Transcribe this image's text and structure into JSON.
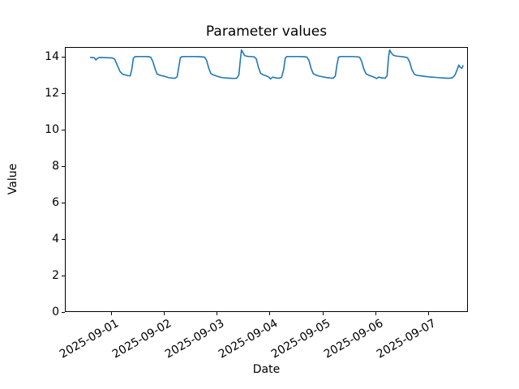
{
  "figure": {
    "background": "#ffffff",
    "text_color": "#000000"
  },
  "chart_data": {
    "type": "line",
    "title": "Parameter values",
    "xlabel": "Date",
    "ylabel": "Value",
    "legend": "none",
    "grid": false,
    "line_color": "#1f77b4",
    "ylim": [
      0,
      14.55
    ],
    "xlim_days_from_first_tick": [
      -0.873,
      6.738
    ],
    "y_ticks": [
      0,
      2,
      4,
      6,
      8,
      10,
      12,
      14
    ],
    "x_tick_labels": [
      "2025-09-01",
      "2025-09-02",
      "2025-09-03",
      "2025-09-04",
      "2025-09-05",
      "2025-09-06",
      "2025-09-07"
    ],
    "x_tick_rotation_deg": 30,
    "series": [
      {
        "name": "parameter",
        "x_unit": "days since 2025-09-01 00:00",
        "points": [
          [
            -0.4,
            14.02
          ],
          [
            -0.36,
            14.01
          ],
          [
            -0.33,
            14.0
          ],
          [
            -0.3,
            13.88
          ],
          [
            -0.27,
            13.97
          ],
          [
            -0.23,
            14.02
          ],
          [
            -0.15,
            14.01
          ],
          [
            -0.05,
            14.0
          ],
          [
            0.02,
            13.99
          ],
          [
            0.06,
            13.9
          ],
          [
            0.11,
            13.55
          ],
          [
            0.16,
            13.22
          ],
          [
            0.21,
            13.09
          ],
          [
            0.26,
            13.05
          ],
          [
            0.31,
            13.01
          ],
          [
            0.35,
            13.0
          ],
          [
            0.38,
            13.35
          ],
          [
            0.41,
            13.97
          ],
          [
            0.44,
            14.06
          ],
          [
            0.52,
            14.07
          ],
          [
            0.62,
            14.07
          ],
          [
            0.7,
            14.06
          ],
          [
            0.74,
            14.03
          ],
          [
            0.78,
            13.8
          ],
          [
            0.82,
            13.4
          ],
          [
            0.86,
            13.1
          ],
          [
            0.9,
            13.05
          ],
          [
            0.96,
            13.0
          ],
          [
            1.02,
            12.96
          ],
          [
            1.08,
            12.9
          ],
          [
            1.14,
            12.88
          ],
          [
            1.2,
            12.87
          ],
          [
            1.24,
            12.95
          ],
          [
            1.27,
            13.45
          ],
          [
            1.3,
            14.0
          ],
          [
            1.33,
            14.06
          ],
          [
            1.42,
            14.07
          ],
          [
            1.54,
            14.07
          ],
          [
            1.66,
            14.06
          ],
          [
            1.76,
            14.04
          ],
          [
            1.8,
            13.85
          ],
          [
            1.84,
            13.42
          ],
          [
            1.88,
            13.12
          ],
          [
            1.93,
            13.05
          ],
          [
            1.99,
            12.99
          ],
          [
            2.05,
            12.93
          ],
          [
            2.11,
            12.9
          ],
          [
            2.18,
            12.88
          ],
          [
            2.25,
            12.87
          ],
          [
            2.31,
            12.86
          ],
          [
            2.37,
            12.87
          ],
          [
            2.41,
            13.05
          ],
          [
            2.44,
            13.9
          ],
          [
            2.46,
            14.43
          ],
          [
            2.49,
            14.28
          ],
          [
            2.52,
            14.12
          ],
          [
            2.57,
            14.08
          ],
          [
            2.63,
            14.07
          ],
          [
            2.7,
            14.05
          ],
          [
            2.74,
            13.95
          ],
          [
            2.78,
            13.5
          ],
          [
            2.82,
            13.15
          ],
          [
            2.87,
            13.06
          ],
          [
            2.93,
            13.0
          ],
          [
            2.98,
            12.93
          ],
          [
            3.01,
            12.83
          ],
          [
            3.05,
            12.93
          ],
          [
            3.11,
            12.89
          ],
          [
            3.17,
            12.87
          ],
          [
            3.22,
            12.92
          ],
          [
            3.26,
            13.35
          ],
          [
            3.29,
            13.97
          ],
          [
            3.32,
            14.07
          ],
          [
            3.4,
            14.07
          ],
          [
            3.52,
            14.07
          ],
          [
            3.64,
            14.06
          ],
          [
            3.7,
            14.04
          ],
          [
            3.74,
            13.85
          ],
          [
            3.78,
            13.42
          ],
          [
            3.82,
            13.12
          ],
          [
            3.87,
            13.05
          ],
          [
            3.93,
            12.99
          ],
          [
            4.0,
            12.95
          ],
          [
            4.07,
            12.91
          ],
          [
            4.14,
            12.88
          ],
          [
            4.2,
            12.87
          ],
          [
            4.24,
            13.0
          ],
          [
            4.27,
            13.6
          ],
          [
            4.3,
            14.04
          ],
          [
            4.34,
            14.07
          ],
          [
            4.44,
            14.07
          ],
          [
            4.56,
            14.07
          ],
          [
            4.66,
            14.05
          ],
          [
            4.7,
            14.03
          ],
          [
            4.74,
            13.8
          ],
          [
            4.78,
            13.38
          ],
          [
            4.82,
            13.12
          ],
          [
            4.87,
            13.04
          ],
          [
            4.93,
            12.98
          ],
          [
            4.98,
            12.92
          ],
          [
            5.02,
            12.85
          ],
          [
            5.06,
            12.93
          ],
          [
            5.12,
            12.89
          ],
          [
            5.18,
            12.87
          ],
          [
            5.22,
            13.0
          ],
          [
            5.25,
            14.05
          ],
          [
            5.27,
            14.43
          ],
          [
            5.3,
            14.27
          ],
          [
            5.34,
            14.14
          ],
          [
            5.4,
            14.09
          ],
          [
            5.48,
            14.07
          ],
          [
            5.56,
            14.04
          ],
          [
            5.61,
            14.0
          ],
          [
            5.65,
            13.75
          ],
          [
            5.69,
            13.35
          ],
          [
            5.74,
            13.08
          ],
          [
            5.79,
            13.03
          ],
          [
            5.86,
            13.0
          ],
          [
            5.94,
            12.97
          ],
          [
            6.03,
            12.94
          ],
          [
            6.12,
            12.92
          ],
          [
            6.21,
            12.9
          ],
          [
            6.3,
            12.88
          ],
          [
            6.39,
            12.87
          ],
          [
            6.46,
            12.89
          ],
          [
            6.51,
            13.05
          ],
          [
            6.55,
            13.35
          ],
          [
            6.58,
            13.6
          ],
          [
            6.61,
            13.47
          ],
          [
            6.64,
            13.42
          ],
          [
            6.66,
            13.56
          ]
        ]
      }
    ]
  }
}
